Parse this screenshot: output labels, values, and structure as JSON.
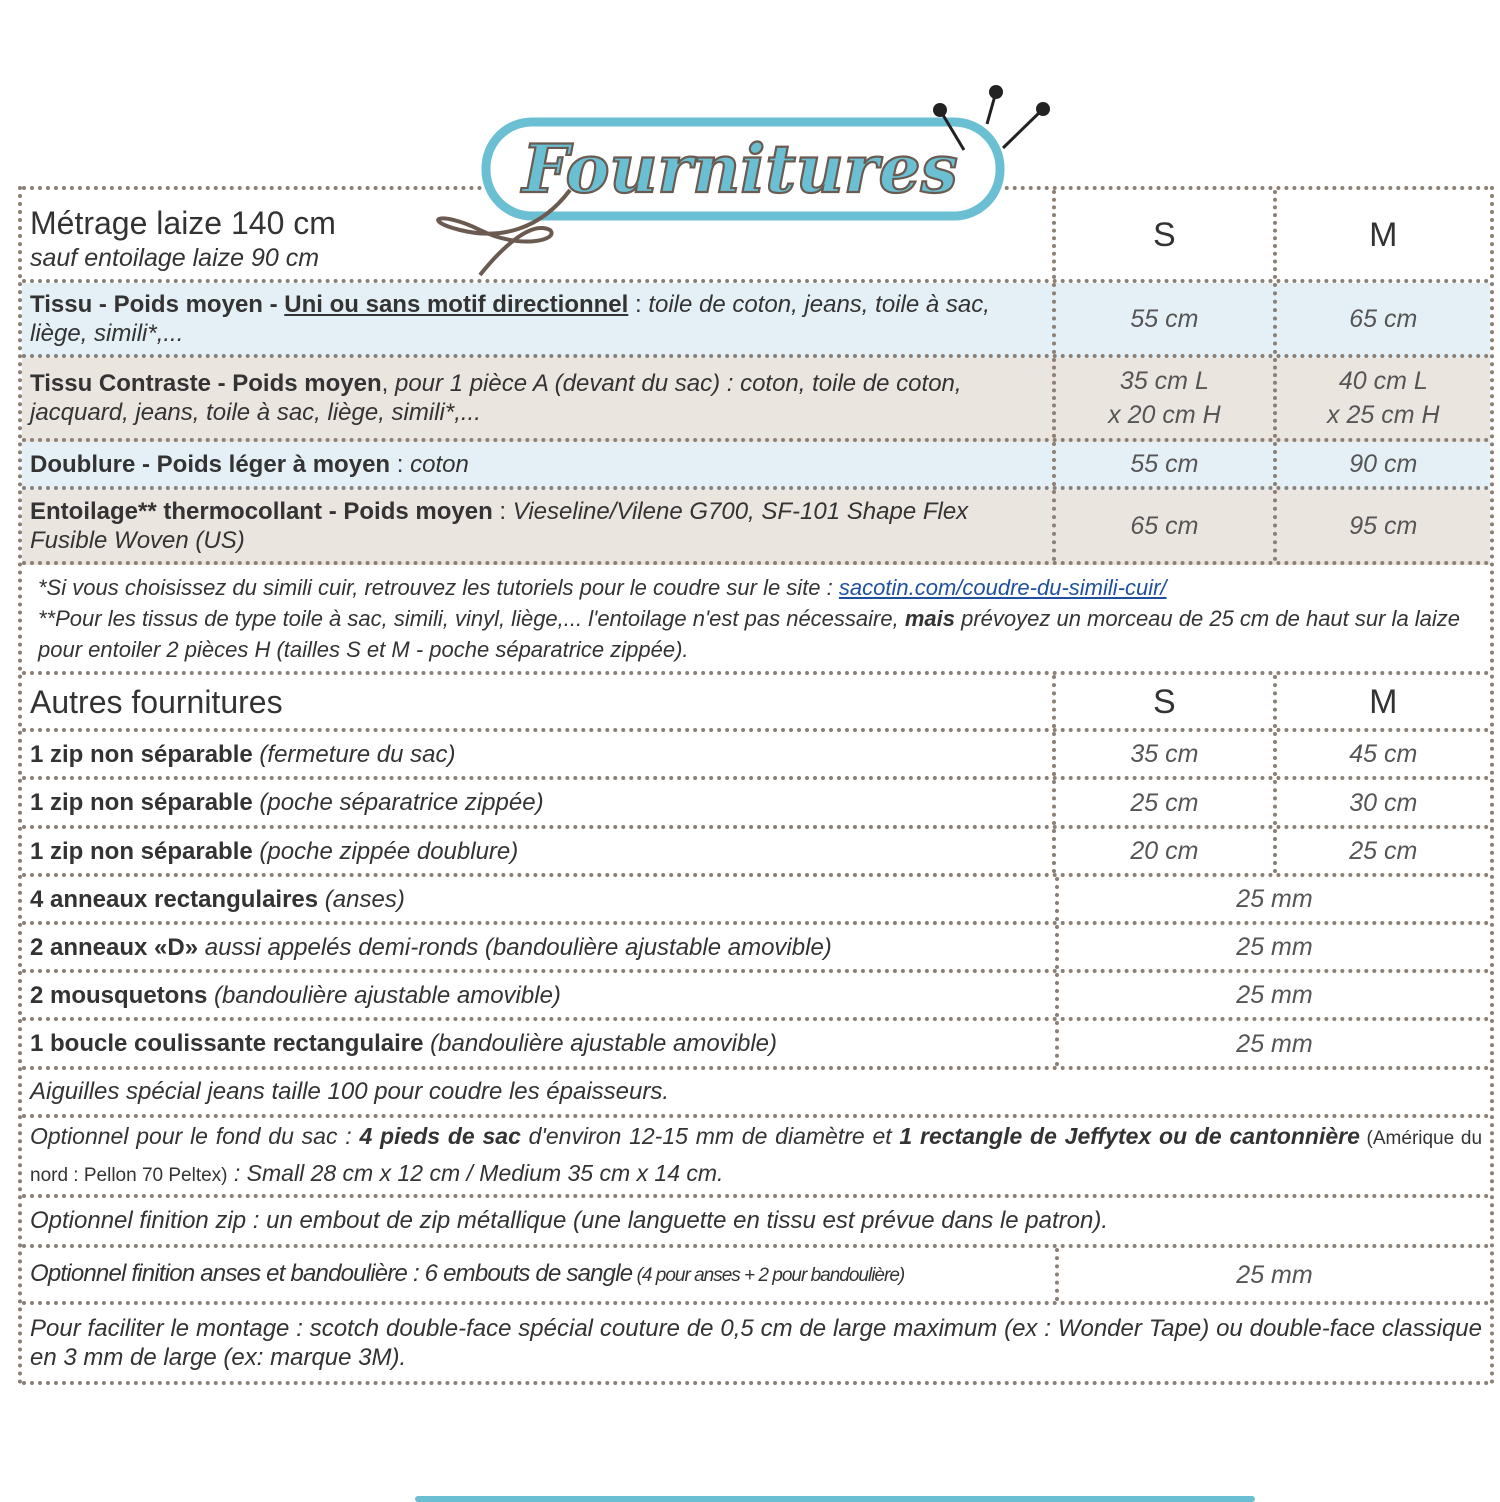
{
  "logo": {
    "title": "Fournitures",
    "accent": "#6bbfd3",
    "outline": "#6b5a50"
  },
  "header": {
    "title": "Métrage laize 140 cm",
    "subtitle": "sauf entoilage laize 90 cm",
    "size_s": "S",
    "size_m": "M"
  },
  "fabrics": [
    {
      "b1": "Tissu - Poids moyen - ",
      "u": "Uni ou sans motif directionnel",
      "t": " : ",
      "i": "toile de coton, jeans, toile à sac, liège, simili*,...",
      "s": "55 cm",
      "m": "65 cm"
    },
    {
      "b1": "Tissu Contraste - Poids moyen",
      "t": ", ",
      "i": "pour 1 pièce A (devant du sac) : coton, toile de coton, jacquard, jeans, toile à sac, liège, simili*,...",
      "s1": "35 cm L",
      "s2": "x 20 cm H",
      "m1": "40 cm L",
      "m2": "x 25 cm H"
    },
    {
      "b1": "Doublure - Poids léger à moyen",
      "t": " : ",
      "i": "coton",
      "s": "55 cm",
      "m": "90 cm"
    },
    {
      "b1": "Entoilage**  thermocollant - Poids moyen",
      "t": " : ",
      "i": "Vieseline/Vilene G700, SF-101 Shape Flex Fusible Woven (US)",
      "s": "65 cm",
      "m": "95 cm"
    }
  ],
  "notes": {
    "line1": "*Si vous choisissez du simili cuir, retrouvez les tutoriels pour le coudre sur le site : ",
    "link": "sacotin.com/coudre-du-simili-cuir/",
    "line2a": "**Pour les tissus de type toile à sac, simili, vinyl, liège,... l'entoilage n'est pas nécessaire, ",
    "line2b": "mais",
    "line2c": " prévoyez un morceau de 25 cm de haut sur la laize pour entoiler 2 pièces H (tailles S et M - poche séparatrice zippée)."
  },
  "others": {
    "title": "Autres fournitures",
    "size_s": "S",
    "size_m": "M",
    "items": [
      {
        "b": "1 zip non séparable",
        "i": " (fermeture du sac)",
        "s": "35 cm",
        "m": "45 cm"
      },
      {
        "b": "1 zip non séparable",
        "i": " (poche séparatrice zippée)",
        "s": "25 cm",
        "m": "30 cm"
      },
      {
        "b": "1 zip non séparable",
        "i": " (poche zippée doublure)",
        "s": "20 cm",
        "m": "25 cm"
      },
      {
        "b": "4 anneaux rectangulaires",
        "i": " (anses)",
        "v": "25 mm"
      },
      {
        "b": "2 anneaux «D»",
        "i": " aussi appelés demi-ronds (bandoulière ajustable amovible)",
        "v": "25 mm"
      },
      {
        "b": "2 mousquetons",
        "i": " (bandoulière ajustable amovible)",
        "v": "25 mm"
      },
      {
        "b": "1 boucle coulissante rectangulaire",
        "i": " (bandoulière ajustable amovible)",
        "v": "25 mm"
      }
    ]
  },
  "extras": {
    "needles": "Aiguilles spécial jeans taille 100 pour coudre les épaisseurs.",
    "bottom_a": "Optionnel pour le fond du sac : ",
    "bottom_b": "4 pieds de sac",
    "bottom_c": " d'environ 12-15 mm de diamètre et ",
    "bottom_d": "1 rectangle de Jeffytex ou de cantonnière",
    "bottom_e": " (Amérique du nord : Pellon 70 Peltex)",
    "bottom_f": " : Small 28 cm x 12 cm / Medium 35 cm x 14 cm.",
    "zip": "Optionnel finition zip : un embout de zip métallique (une languette en tissu est prévue dans le patron).",
    "straps": "Optionnel finition anses et bandoulière : 6 embouts de sangle",
    "straps_small": " (4 pour anses + 2 pour bandoulière)",
    "straps_value": "25 mm",
    "tape": "Pour faciliter le montage : scotch double-face spécial couture de 0,5 cm de large maximum (ex : Wonder Tape) ou double-face classique en 3 mm de large (ex: marque 3M)."
  }
}
